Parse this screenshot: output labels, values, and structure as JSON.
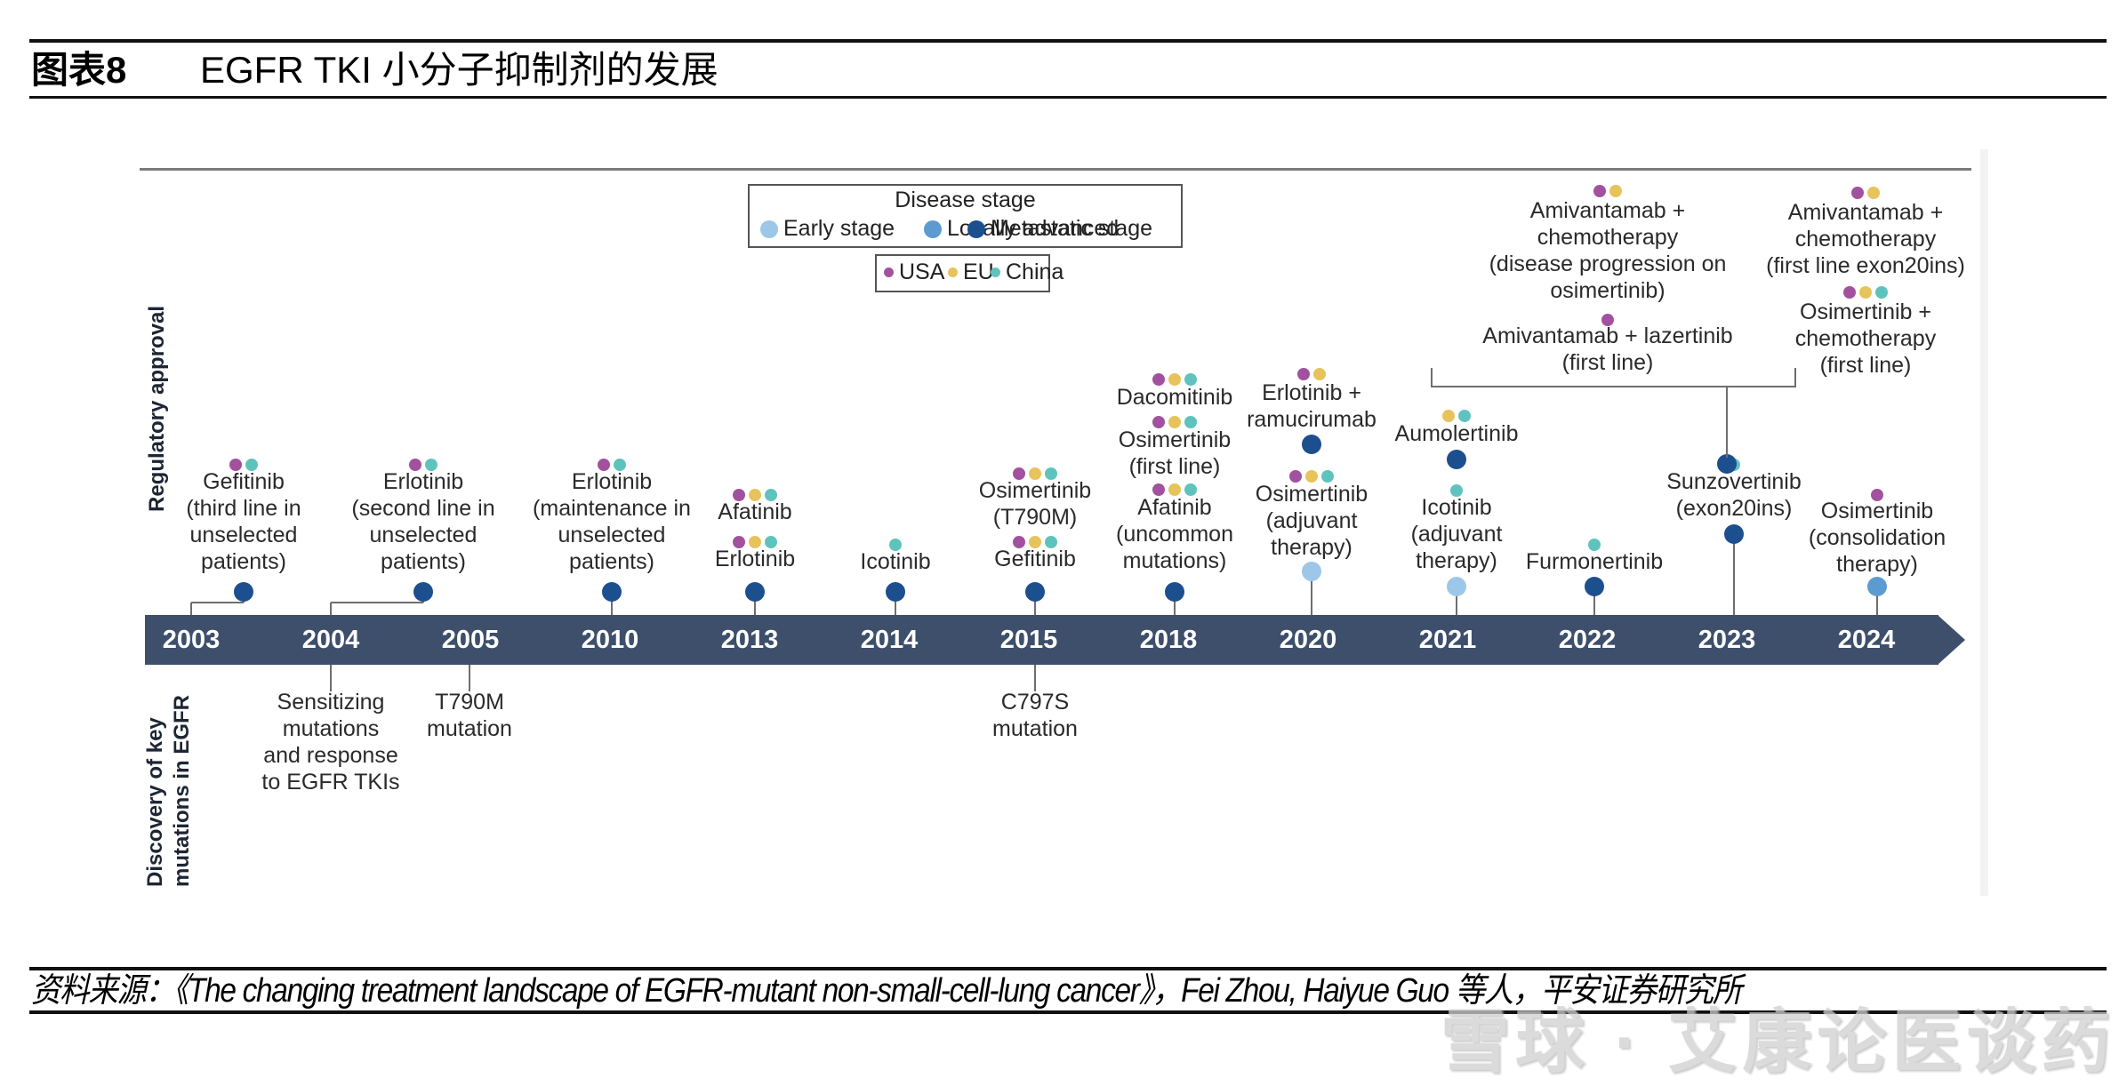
{
  "header": {
    "figure_number": "图表8",
    "title": "EGFR TKI 小分子抑制剂的发展"
  },
  "footer": {
    "source": "资料来源：《The changing treatment landscape of EGFR-mutant non-small-cell-lung cancer》，Fei Zhou, Haiyue Guo 等人，平安证券研究所",
    "watermark": "雪球 · 艾康论医谈药"
  },
  "figure": {
    "axis_labels": {
      "top": "Regulatory approval",
      "bottom_line1": "Discovery of key",
      "bottom_line2": "mutations in EGFR"
    },
    "legend": {
      "stage_title": "Disease stage",
      "stages": [
        {
          "key": "early",
          "label": "Early stage",
          "color": "#9cc7e8"
        },
        {
          "key": "local",
          "label": "Locally advanced",
          "color": "#5b9bd1"
        },
        {
          "key": "meta",
          "label": "Metastatic stage",
          "color": "#1c4f8e"
        }
      ],
      "regions": [
        {
          "key": "usa",
          "label": "USA",
          "color": "#a2519f"
        },
        {
          "key": "eu",
          "label": "EU",
          "color": "#e6c35b"
        },
        {
          "key": "china",
          "label": "China",
          "color": "#5fc3bd"
        }
      ]
    },
    "years": [
      "2003",
      "2004",
      "2005",
      "2010",
      "2013",
      "2014",
      "2015",
      "2018",
      "2020",
      "2021",
      "2022",
      "2023",
      "2024"
    ],
    "approvals": [
      {
        "year": "2003",
        "label": "Gefitinib\n(third line in\nunselected\npatients)",
        "regions": [
          "usa",
          "china"
        ],
        "stage": "meta"
      },
      {
        "year": "2004",
        "label": "Erlotinib\n(second line in\nunselected\npatients)",
        "regions": [
          "usa",
          "china"
        ],
        "stage": "meta"
      },
      {
        "year": "2010",
        "label": "Erlotinib\n(maintenance in\nunselected\npatients)",
        "regions": [
          "usa",
          "china"
        ],
        "stage": "meta"
      },
      {
        "year": "2013",
        "label": "Afatinib",
        "regions": [
          "usa",
          "eu",
          "china"
        ],
        "stage": "meta"
      },
      {
        "year": "2013",
        "label": "Erlotinib",
        "regions": [
          "usa",
          "eu",
          "china"
        ],
        "stage": "meta"
      },
      {
        "year": "2014",
        "label": "Icotinib",
        "regions": [
          "china"
        ],
        "stage": "meta"
      },
      {
        "year": "2015",
        "label": "Osimertinib\n(T790M)",
        "regions": [
          "usa",
          "eu",
          "china"
        ],
        "stage": "meta"
      },
      {
        "year": "2015",
        "label": "Gefitinib",
        "regions": [
          "usa",
          "eu",
          "china"
        ],
        "stage": "meta"
      },
      {
        "year": "2018",
        "label": "Dacomitinib",
        "regions": [
          "usa",
          "eu",
          "china"
        ],
        "stage": "meta"
      },
      {
        "year": "2018",
        "label": "Osimertinib\n(first line)",
        "regions": [
          "usa",
          "eu",
          "china"
        ],
        "stage": "meta"
      },
      {
        "year": "2018",
        "label": "Afatinib\n(uncommon\nmutations)",
        "regions": [
          "usa",
          "eu",
          "china"
        ],
        "stage": "meta"
      },
      {
        "year": "2020",
        "label": "Erlotinib +\nramucirumab",
        "regions": [
          "usa",
          "eu"
        ],
        "stage": "meta"
      },
      {
        "year": "2020",
        "label": "Osimertinib\n(adjuvant\ntherapy)",
        "regions": [
          "usa",
          "eu",
          "china"
        ],
        "stage": "early"
      },
      {
        "year": "2021",
        "label": "Aumolertinib",
        "regions": [
          "eu",
          "china"
        ],
        "stage": "meta"
      },
      {
        "year": "2021",
        "label": "Icotinib\n(adjuvant\ntherapy)",
        "regions": [
          "china"
        ],
        "stage": "early"
      },
      {
        "year": "2022",
        "label": "Furmonertinib",
        "regions": [
          "china"
        ],
        "stage": "meta"
      },
      {
        "year": "2023",
        "label": "Sunzovertinib\n(exon20ins)",
        "regions": [
          "china"
        ],
        "stage": "meta"
      },
      {
        "year": "2024",
        "label": "Amivantamab +\nchemotherapy\n(disease progression on\nosimertinib)",
        "regions": [
          "usa",
          "eu"
        ],
        "stage": "meta"
      },
      {
        "year": "2024",
        "label": "Amivantamab + lazertinib\n(first line)",
        "regions": [
          "usa"
        ],
        "stage": "meta"
      },
      {
        "year": "2024",
        "label": "Amivantamab +\nchemotherapy\n(first line exon20ins)",
        "regions": [
          "usa",
          "eu"
        ],
        "stage": "meta"
      },
      {
        "year": "2024",
        "label": "Osimertinib +\nchemotherapy\n(first line)",
        "regions": [
          "usa",
          "eu",
          "china"
        ],
        "stage": "meta"
      },
      {
        "year": "2024",
        "label": "Osimertinib\n(consolidation\ntherapy)",
        "regions": [
          "usa"
        ],
        "stage": "local"
      }
    ],
    "discoveries": [
      {
        "year": "2004",
        "label": "Sensitizing\nmutations\nand response\nto EGFR TKIs"
      },
      {
        "year": "2005",
        "label": "T790M\nmutation"
      },
      {
        "year": "2015",
        "label": "C797S\nmutation"
      }
    ]
  }
}
